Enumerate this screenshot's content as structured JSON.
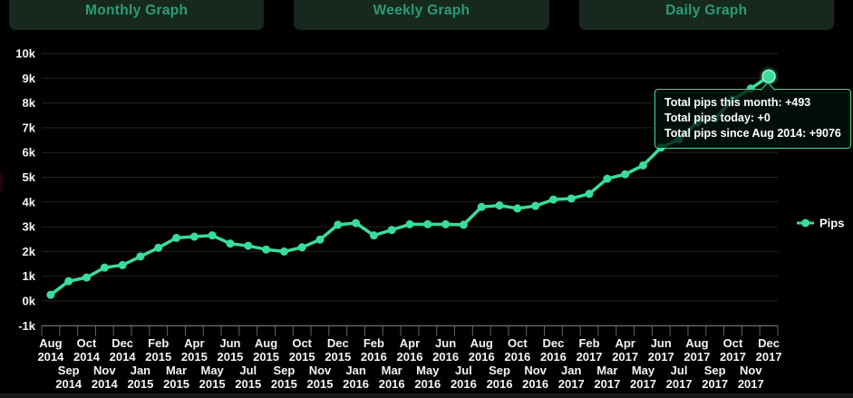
{
  "tabs": [
    {
      "label": "Monthly Graph"
    },
    {
      "label": "Weekly Graph"
    },
    {
      "label": "Daily Graph"
    }
  ],
  "tooltip": {
    "lines": [
      "Total pips this month: +493",
      "Total pips today: +0",
      "Total pips since Aug 2014: +9076"
    ]
  },
  "colors": {
    "accent": "#39dd9b",
    "tab_background": "#17291f",
    "tab_text": "#2c9c74",
    "background": "#000000",
    "grid": "#232323",
    "axis": "#8f8f8f",
    "label": "#f4f4f4"
  },
  "chart_data": {
    "type": "line",
    "title": "",
    "xlabel": "",
    "ylabel": "",
    "grid": true,
    "legend_position": "right",
    "ylim": [
      -1000,
      10000
    ],
    "yticks": {
      "labels": [
        "10k",
        "9k",
        "8k",
        "7k",
        "6k",
        "5k",
        "4k",
        "3k",
        "2k",
        "1k",
        "0k",
        "-1k"
      ],
      "values": [
        10000,
        9000,
        8000,
        7000,
        6000,
        5000,
        4000,
        3000,
        2000,
        1000,
        0,
        -1000
      ]
    },
    "categories": [
      "Aug 2014",
      "Sep 2014",
      "Oct 2014",
      "Nov 2014",
      "Dec 2014",
      "Jan 2015",
      "Feb 2015",
      "Mar 2015",
      "Apr 2015",
      "May 2015",
      "Jun 2015",
      "Jul 2015",
      "Aug 2015",
      "Sep 2015",
      "Oct 2015",
      "Nov 2015",
      "Dec 2015",
      "Jan 2016",
      "Feb 2016",
      "Mar 2016",
      "Apr 2016",
      "May 2016",
      "Jun 2016",
      "Jul 2016",
      "Aug 2016",
      "Sep 2016",
      "Oct 2016",
      "Nov 2016",
      "Dec 2016",
      "Jan 2017",
      "Feb 2017",
      "Mar 2017",
      "Apr 2017",
      "May 2017",
      "Jun 2017",
      "Jul 2017",
      "Aug 2017",
      "Sep 2017",
      "Oct 2017",
      "Nov 2017",
      "Dec 2017"
    ],
    "series": [
      {
        "name": "Pips",
        "values": [
          250,
          800,
          950,
          1350,
          1450,
          1800,
          2150,
          2550,
          2600,
          2650,
          2320,
          2230,
          2080,
          2000,
          2170,
          2480,
          3080,
          3150,
          2650,
          2870,
          3100,
          3100,
          3100,
          3080,
          3800,
          3860,
          3740,
          3840,
          4100,
          4140,
          4330,
          4940,
          5120,
          5480,
          6200,
          6530,
          7220,
          7370,
          8140,
          8583,
          9076
        ]
      }
    ]
  }
}
